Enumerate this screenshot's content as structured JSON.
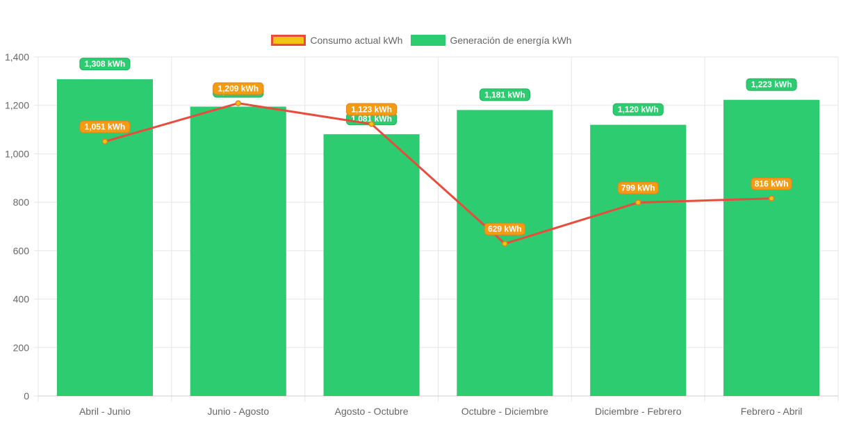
{
  "legend": {
    "line_label": "Consumo actual kWh",
    "bar_label": "Generación de energía kWh"
  },
  "colors": {
    "bar_fill": "#2ecc71",
    "bar_label_border": "#27ae60",
    "line_stroke": "#e74c3c",
    "line_point_fill": "#f1c40f",
    "line_label_fill": "#f39c12",
    "line_label_border": "#e67e22",
    "grid": "#e5e5e5",
    "tick_text": "#666666"
  },
  "chart_data": {
    "type": "bar",
    "title": "",
    "xlabel": "",
    "ylabel": "",
    "ylim": [
      0,
      1400
    ],
    "y_ticks": [
      0,
      200,
      400,
      600,
      800,
      1000,
      1200,
      1400
    ],
    "y_tick_labels": [
      "0",
      "200",
      "400",
      "600",
      "800",
      "1,000",
      "1,200",
      "1,400"
    ],
    "grid": true,
    "legend_position": "top",
    "categories": [
      "Abril - Junio",
      "Junio - Agosto",
      "Agosto - Octubre",
      "Octubre - Diciembre",
      "Diciembre - Febrero",
      "Febrero - Abril"
    ],
    "series": [
      {
        "name": "Consumo actual kWh",
        "type": "line",
        "values": [
          1051,
          1209,
          1123,
          629,
          799,
          816
        ],
        "labels": [
          "1,051 kWh",
          "1,209 kWh",
          "1,123 kWh",
          "629 kWh",
          "799 kWh",
          "816 kWh"
        ]
      },
      {
        "name": "Generación de energía kWh",
        "type": "bar",
        "values": [
          1308,
          1195,
          1081,
          1181,
          1120,
          1223
        ],
        "labels": [
          "1,308 kWh",
          "1,195 kWh",
          "1,081 kWh",
          "1,181 kWh",
          "1,120 kWh",
          "1,223 kWh"
        ]
      }
    ]
  }
}
